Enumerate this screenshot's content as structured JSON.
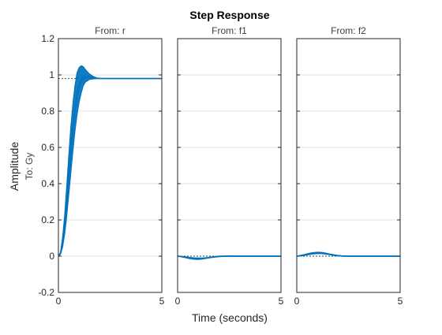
{
  "chart_data": {
    "type": "line",
    "title": "Step Response",
    "xlabel": "Time (seconds)",
    "ylabel": "Amplitude",
    "row_label": "To: Gy",
    "xlim": [
      0,
      5
    ],
    "ylim": [
      -0.2,
      1.2
    ],
    "x_ticks": [
      0,
      5
    ],
    "x_tick_labels": [
      "0",
      "5"
    ],
    "y_ticks": [
      -0.2,
      0,
      0.2,
      0.4,
      0.6,
      0.8,
      1,
      1.2
    ],
    "y_tick_labels": [
      "-0.2",
      "0",
      "0.2",
      "0.4",
      "0.6",
      "0.8",
      "1",
      "1.2"
    ],
    "grid": "horizontal",
    "line_color": "#0072BD",
    "reference_color": "#404040",
    "panels": [
      {
        "title": "From: r",
        "steady_state": 0.98,
        "band": {
          "t": [
            0,
            0.1,
            0.2,
            0.3,
            0.4,
            0.5,
            0.6,
            0.7,
            0.8,
            0.9,
            1.0,
            1.1,
            1.2,
            1.3,
            1.5,
            1.7,
            1.9,
            2.1,
            2.3,
            2.5,
            2.7,
            3.0,
            3.5,
            4.0,
            4.5,
            5.0
          ],
          "upper": [
            0,
            0.02,
            0.1,
            0.22,
            0.38,
            0.55,
            0.71,
            0.84,
            0.94,
            1.01,
            1.04,
            1.05,
            1.045,
            1.03,
            1.005,
            0.99,
            0.982,
            0.98,
            0.98,
            0.98,
            0.98,
            0.98,
            0.98,
            0.98,
            0.98,
            0.98
          ],
          "lower": [
            0,
            0.01,
            0.05,
            0.12,
            0.22,
            0.34,
            0.46,
            0.58,
            0.69,
            0.78,
            0.85,
            0.9,
            0.94,
            0.96,
            0.975,
            0.978,
            0.98,
            0.98,
            0.98,
            0.98,
            0.98,
            0.98,
            0.98,
            0.98,
            0.98,
            0.98
          ]
        },
        "lines": [
          {
            "t": [
              0,
              0.1,
              0.2,
              0.3,
              0.4,
              0.5,
              0.6,
              0.7,
              0.8,
              0.9,
              1.0,
              1.1,
              1.2,
              1.3,
              1.5,
              1.7,
              1.9,
              2.1,
              2.3,
              2.5,
              2.7,
              3.0,
              3.5,
              4.0,
              4.5,
              5.0
            ],
            "y": [
              0,
              0.015,
              0.07,
              0.16,
              0.29,
              0.44,
              0.58,
              0.71,
              0.81,
              0.89,
              0.94,
              0.97,
              0.985,
              0.99,
              0.99,
              0.985,
              0.981,
              0.98,
              0.98,
              0.98,
              0.98,
              0.98,
              0.98,
              0.98,
              0.98,
              0.98
            ]
          }
        ]
      },
      {
        "title": "From: f1",
        "steady_state": 0,
        "lines": [
          {
            "t": [
              0,
              0.2,
              0.4,
              0.6,
              0.8,
              1.0,
              1.2,
              1.4,
              1.6,
              1.8,
              2.0,
              2.2,
              2.5,
              3.0,
              3.5,
              4.0,
              4.5,
              5.0
            ],
            "y": [
              0,
              -0.002,
              -0.006,
              -0.01,
              -0.013,
              -0.014,
              -0.013,
              -0.01,
              -0.007,
              -0.004,
              -0.002,
              -0.001,
              0,
              0,
              0,
              0,
              0,
              0
            ]
          },
          {
            "t": [
              0,
              0.2,
              0.4,
              0.6,
              0.8,
              1.0,
              1.2,
              1.4,
              1.6,
              1.8,
              2.0,
              2.2,
              2.5,
              3.0,
              3.5,
              4.0,
              4.5,
              5.0
            ],
            "y": [
              0,
              -0.003,
              -0.008,
              -0.013,
              -0.016,
              -0.017,
              -0.015,
              -0.011,
              -0.007,
              -0.004,
              -0.001,
              0,
              0.001,
              0,
              0,
              0,
              0,
              0
            ]
          },
          {
            "t": [
              0,
              0.2,
              0.4,
              0.6,
              0.8,
              1.0,
              1.2,
              1.4,
              1.6,
              1.8,
              2.0,
              2.2,
              2.5,
              3.0,
              3.5,
              4.0,
              4.5,
              5.0
            ],
            "y": [
              0,
              -0.002,
              -0.005,
              -0.008,
              -0.01,
              -0.011,
              -0.011,
              -0.009,
              -0.006,
              -0.003,
              -0.001,
              0,
              0,
              0,
              0,
              0,
              0,
              0
            ]
          }
        ]
      },
      {
        "title": "From: f2",
        "steady_state": 0,
        "lines": [
          {
            "t": [
              0,
              0.2,
              0.4,
              0.6,
              0.8,
              1.0,
              1.2,
              1.4,
              1.6,
              1.8,
              2.0,
              2.2,
              2.5,
              3.0,
              3.5,
              4.0,
              4.5,
              5.0
            ],
            "y": [
              0,
              0.003,
              0.007,
              0.012,
              0.016,
              0.018,
              0.017,
              0.014,
              0.01,
              0.006,
              0.003,
              0.001,
              0,
              0,
              0,
              0,
              0,
              0
            ]
          },
          {
            "t": [
              0,
              0.2,
              0.4,
              0.6,
              0.8,
              1.0,
              1.2,
              1.4,
              1.6,
              1.8,
              2.0,
              2.2,
              2.5,
              3.0,
              3.5,
              4.0,
              4.5,
              5.0
            ],
            "y": [
              0,
              0.004,
              0.009,
              0.015,
              0.019,
              0.021,
              0.02,
              0.016,
              0.011,
              0.007,
              0.003,
              0.001,
              0,
              0,
              0,
              0,
              0,
              0
            ]
          },
          {
            "t": [
              0,
              0.2,
              0.4,
              0.6,
              0.8,
              1.0,
              1.2,
              1.4,
              1.6,
              1.8,
              2.0,
              2.2,
              2.5,
              3.0,
              3.5,
              4.0,
              4.5,
              5.0
            ],
            "y": [
              0,
              0.002,
              0.006,
              0.01,
              0.013,
              0.015,
              0.015,
              0.012,
              0.009,
              0.005,
              0.002,
              0.001,
              0,
              0,
              0,
              0,
              0,
              0
            ]
          }
        ]
      }
    ]
  }
}
